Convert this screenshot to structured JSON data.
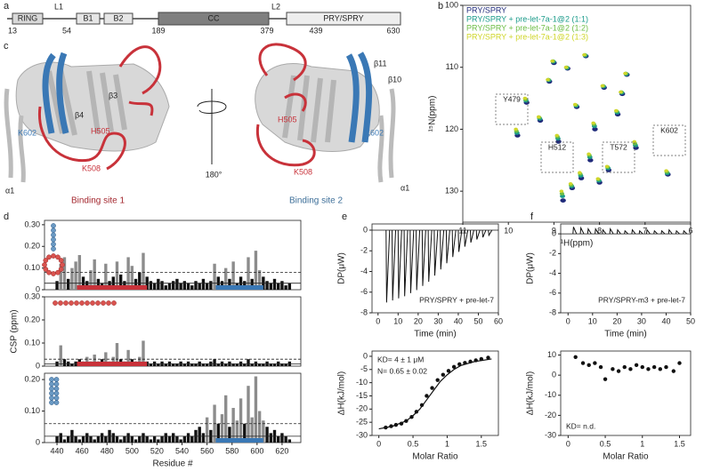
{
  "panels": [
    "a",
    "b",
    "c",
    "d",
    "e",
    "f"
  ],
  "domain_diagram": {
    "domains": [
      "RING",
      "B1",
      "B2",
      "CC",
      "PRY/SPRY"
    ],
    "linkers": [
      "L1",
      "L2"
    ],
    "positions": [
      13,
      54,
      189,
      379,
      439,
      630
    ]
  },
  "structure": {
    "left": [
      "β3",
      "β4",
      "H505",
      "K508",
      "K602",
      "α1"
    ],
    "right": [
      "β11",
      "β10",
      "H505",
      "K602",
      "K508",
      "α1"
    ],
    "rotation": "180°",
    "site1": "Binding site 1",
    "site2": "Binding site 2"
  },
  "chart_data": [
    {
      "type": "scatter",
      "xlabel": "¹H(ppm)",
      "ylabel": "¹⁵N(ppm)",
      "x_reversed": true,
      "y_reversed": true,
      "xlim": [
        6,
        11
      ],
      "ylim": [
        100,
        135
      ],
      "xticks": [
        11,
        10,
        9,
        8,
        7,
        6
      ],
      "yticks": [
        100,
        110,
        120,
        130
      ],
      "legend": "upper left",
      "annotations": [
        "Y479",
        "H512",
        "T572",
        "K602"
      ],
      "x": [
        9.6,
        9.3,
        9.1,
        8.9,
        8.7,
        8.5,
        8.3,
        8.1,
        7.9,
        7.6,
        7.4,
        7.2,
        8.8,
        8.2,
        7.8,
        9.8,
        8.6,
        8.0,
        7.5,
        8.4,
        9.0,
        6.5
      ],
      "series": [
        {
          "name": "PRY/SPRY",
          "color": "#1f2a7a",
          "values": [
            115.7,
            118.6,
            112.3,
            122,
            110.2,
            116.4,
            108.2,
            120,
            113.3,
            117.6,
            111.2,
            123,
            131.5,
            125,
            126.6,
            121,
            129.5,
            128.6,
            114.3,
            127.9,
            109.3,
            127.3
          ]
        },
        {
          "name": "PRY/SPRY + pre-let-7a-1@2 (1:1)",
          "color": "#1a9b8a",
          "values": [
            115.4,
            118.3,
            112.1,
            121.5,
            110.1,
            116.2,
            108.1,
            119.5,
            113.1,
            117.3,
            111.1,
            122.6,
            130.8,
            124.5,
            126.3,
            120.6,
            129.2,
            128.3,
            114.1,
            127.5,
            109.1,
            127.1
          ]
        },
        {
          "name": "PRY/SPRY + pre-let-7a-1@2 (1:2)",
          "color": "#6dbd45",
          "values": [
            115.2,
            118.1,
            112,
            121.2,
            110,
            116.1,
            108,
            119.2,
            113,
            117.1,
            111,
            122.3,
            130.4,
            124.2,
            126.1,
            120.3,
            129,
            128.1,
            114,
            127.2,
            109,
            126.9
          ]
        },
        {
          "name": "PRY/SPRY + pre-let-7a-1@2 (1:3)",
          "color": "#cfd62a",
          "values": [
            115,
            118,
            112,
            121,
            110,
            116,
            108,
            119,
            113,
            117,
            111,
            122,
            130,
            124,
            126,
            120,
            128.8,
            128,
            114,
            127,
            109,
            126.7
          ]
        }
      ]
    },
    {
      "type": "bar",
      "color": "#111111",
      "highlight_color": "#8c8c8c",
      "xlim": [
        430,
        635
      ],
      "ylim": [
        0,
        0.32
      ],
      "yticks": [
        0,
        {
          "value": 0.1,
          "label": "0.10"
        },
        {
          "value": 0.2,
          "label": "0.20"
        },
        {
          "value": 0.3,
          "label": "0.30"
        }
      ],
      "hlines": [
        0.03,
        0.08
      ],
      "regions": [
        {
          "start": 456,
          "end": 512,
          "color": "#c8323a"
        },
        {
          "start": 567,
          "end": 605,
          "color": "#3a78b5"
        }
      ],
      "x": [
        440,
        443,
        446,
        449,
        452,
        455,
        458,
        461,
        464,
        467,
        470,
        473,
        476,
        479,
        482,
        485,
        488,
        491,
        494,
        497,
        500,
        503,
        506,
        509,
        512,
        515,
        518,
        521,
        524,
        527,
        530,
        533,
        536,
        539,
        542,
        545,
        548,
        551,
        554,
        557,
        560,
        563,
        566,
        569,
        572,
        575,
        578,
        581,
        584,
        587,
        590,
        593,
        596,
        599,
        602,
        605,
        608,
        611,
        614,
        617,
        620,
        623,
        626
      ],
      "values": [
        0.04,
        0.12,
        0.15,
        0.05,
        0.1,
        0.13,
        0.16,
        0.06,
        0.04,
        0.09,
        0.14,
        0.05,
        0.03,
        0.12,
        0.04,
        0.06,
        0.13,
        0.07,
        0.04,
        0.15,
        0.11,
        0.05,
        0.08,
        0.17,
        0.06,
        0.04,
        0.03,
        0.05,
        0.04,
        0.02,
        0.03,
        0.04,
        0.05,
        0.03,
        0.04,
        0.03,
        0.02,
        0.04,
        0.03,
        0.05,
        0.03,
        0.04,
        0.12,
        0.06,
        0.04,
        0.1,
        0.05,
        0.13,
        0.03,
        0.06,
        0.04,
        0.15,
        0.05,
        0.18,
        0.09,
        0.06,
        0.04,
        0.03,
        0.05,
        0.03,
        0.04,
        0.02,
        0.03
      ]
    },
    {
      "type": "bar",
      "color": "#111111",
      "highlight_color": "#8c8c8c",
      "ylabel": "CSP (ppm)",
      "xlim": [
        430,
        635
      ],
      "ylim": [
        0,
        0.3
      ],
      "yticks": [
        0,
        {
          "value": 0.1,
          "label": "0.10"
        },
        {
          "value": 0.2,
          "label": "0.20"
        },
        {
          "value": 0.3,
          "label": "0.30"
        }
      ],
      "hlines": [
        0.01,
        0.03
      ],
      "regions": [
        {
          "start": 456,
          "end": 512,
          "color": "#c8323a"
        }
      ],
      "x": [
        440,
        443,
        446,
        449,
        452,
        455,
        458,
        461,
        464,
        467,
        470,
        473,
        476,
        479,
        482,
        485,
        488,
        491,
        494,
        497,
        500,
        503,
        506,
        509,
        512,
        515,
        518,
        521,
        524,
        527,
        530,
        533,
        536,
        539,
        542,
        545,
        548,
        551,
        554,
        557,
        560,
        563,
        566,
        569,
        572,
        575,
        578,
        581,
        584,
        587,
        590,
        593,
        596,
        599,
        602,
        605,
        608,
        611,
        614,
        617,
        620,
        623,
        626
      ],
      "values": [
        0.02,
        0.09,
        0.03,
        0.02,
        0.01,
        0.02,
        0.03,
        0.02,
        0.04,
        0.02,
        0.05,
        0.02,
        0.03,
        0.06,
        0.02,
        0.04,
        0.1,
        0.03,
        0.02,
        0.07,
        0.03,
        0.02,
        0.04,
        0.11,
        0.02,
        0.01,
        0.02,
        0.01,
        0.02,
        0.01,
        0.02,
        0.01,
        0.01,
        0.02,
        0.01,
        0.02,
        0.01,
        0.01,
        0.02,
        0.01,
        0.01,
        0.02,
        0.03,
        0.01,
        0.02,
        0.01,
        0.02,
        0.01,
        0.01,
        0.02,
        0.01,
        0.03,
        0.01,
        0.02,
        0.01,
        0.01,
        0.02,
        0.01,
        0.01,
        0.02,
        0.01,
        0.01,
        0.02
      ]
    },
    {
      "type": "bar",
      "color": "#111111",
      "highlight_color": "#8c8c8c",
      "xlabel": "Residue #",
      "xlim": [
        430,
        635
      ],
      "ylim": [
        0,
        0.22
      ],
      "xticks": [
        440,
        460,
        480,
        500,
        520,
        540,
        560,
        580,
        600,
        620
      ],
      "yticks": [
        0,
        {
          "value": 0.1,
          "label": "0.10"
        },
        {
          "value": 0.2,
          "label": "0.20"
        }
      ],
      "hlines": [
        0.02,
        0.06
      ],
      "regions": [
        {
          "start": 567,
          "end": 605,
          "color": "#3a78b5"
        }
      ],
      "x": [
        440,
        443,
        446,
        449,
        452,
        455,
        458,
        461,
        464,
        467,
        470,
        473,
        476,
        479,
        482,
        485,
        488,
        491,
        494,
        497,
        500,
        503,
        506,
        509,
        512,
        515,
        518,
        521,
        524,
        527,
        530,
        533,
        536,
        539,
        542,
        545,
        548,
        551,
        554,
        557,
        560,
        563,
        566,
        569,
        572,
        575,
        578,
        581,
        584,
        587,
        590,
        593,
        596,
        599,
        602,
        605,
        608,
        611,
        614,
        617,
        620,
        623,
        626
      ],
      "values": [
        0.02,
        0.03,
        0.01,
        0.02,
        0.04,
        0.02,
        0.01,
        0.02,
        0.03,
        0.02,
        0.01,
        0.02,
        0.03,
        0.02,
        0.04,
        0.03,
        0.02,
        0.01,
        0.02,
        0.03,
        0.02,
        0.01,
        0.02,
        0.03,
        0.02,
        0.01,
        0.02,
        0.01,
        0.02,
        0.03,
        0.02,
        0.03,
        0.02,
        0.01,
        0.02,
        0.03,
        0.02,
        0.04,
        0.05,
        0.03,
        0.08,
        0.04,
        0.12,
        0.06,
        0.09,
        0.15,
        0.05,
        0.11,
        0.07,
        0.14,
        0.06,
        0.18,
        0.08,
        0.21,
        0.1,
        0.07,
        0.05,
        0.03,
        0.04,
        0.02,
        0.03,
        0.02,
        0.01
      ]
    },
    {
      "type": "impulse",
      "color": "#111111",
      "xlabel": "Time (min)",
      "ylabel": "DP(μW)",
      "annotations": [
        "PRY/SPRY + pre-let-7"
      ],
      "xlim": [
        -3,
        60
      ],
      "ylim": [
        -8,
        0.6
      ],
      "xticks": [
        0,
        10,
        20,
        30,
        40,
        50,
        60
      ],
      "yticks": [
        -8,
        -6,
        -4,
        -2,
        0
      ],
      "x": [
        4,
        7,
        10,
        13,
        16,
        19,
        22,
        25,
        28,
        31,
        34,
        37,
        40,
        43,
        46,
        49,
        52,
        55
      ],
      "values": [
        -7,
        -6.8,
        -6.6,
        -6.4,
        -6.1,
        -5.8,
        -5.4,
        -5,
        -4.4,
        -3.8,
        -3.2,
        -2.6,
        -2.1,
        -1.6,
        -1.2,
        -0.9,
        -0.7,
        -0.5
      ]
    },
    {
      "type": "scatter",
      "color": "#111111",
      "xlabel": "Molar Ratio",
      "ylabel": "ΔH(kJ/mol)",
      "annotations": [
        "KD= 4 ± 1 μM",
        "N= 0.65 ± 0.02"
      ],
      "xlim": [
        -0.1,
        1.75
      ],
      "ylim": [
        -30,
        2
      ],
      "xticks": [
        0,
        0.5,
        1,
        1.5
      ],
      "yticks": [
        -30,
        -25,
        -20,
        -15,
        -10,
        -5,
        0
      ],
      "points": {
        "x": [
          0.1,
          0.18,
          0.25,
          0.33,
          0.4,
          0.48,
          0.55,
          0.63,
          0.7,
          0.78,
          0.86,
          0.94,
          1.02,
          1.1,
          1.18,
          1.26,
          1.34,
          1.42,
          1.5,
          1.6
        ],
        "values": [
          -27,
          -26.5,
          -26,
          -25.5,
          -24.5,
          -23,
          -21,
          -18.5,
          -15,
          -12,
          -9,
          -7,
          -5.5,
          -4,
          -3,
          -2.5,
          -2,
          -1.5,
          -1,
          -0.5
        ]
      },
      "fit": {
        "x": [
          0,
          0.2,
          0.4,
          0.5,
          0.6,
          0.7,
          0.8,
          0.9,
          1.0,
          1.1,
          1.2,
          1.4,
          1.65
        ],
        "values": [
          -27.5,
          -26.5,
          -24.5,
          -22.5,
          -20,
          -16.5,
          -13,
          -9.5,
          -7,
          -5,
          -3.5,
          -2,
          -1
        ]
      }
    },
    {
      "type": "impulse",
      "color": "#111111",
      "xlabel": "Time (min)",
      "ylabel": "DP(μW)",
      "annotations": [
        "PRY/SPRY-m3 + pre-let-7"
      ],
      "xlim": [
        -3,
        50
      ],
      "ylim": [
        -8,
        1
      ],
      "xticks": [
        0,
        10,
        20,
        30,
        40,
        50
      ],
      "yticks": [
        -8,
        -6,
        -4,
        -2,
        0
      ],
      "x": [
        2,
        5,
        8,
        11,
        14,
        17,
        20,
        23,
        26,
        29,
        32,
        35,
        38,
        41,
        44,
        47
      ],
      "values": [
        0.7,
        0.6,
        0.5,
        0.5,
        0.4,
        0.5,
        0.4,
        0.3,
        0.4,
        0.3,
        0.4,
        0.3,
        0.3,
        0.4,
        0.3,
        0.3
      ]
    },
    {
      "type": "scatter",
      "color": "#111111",
      "xlabel": "Molar Ratio",
      "ylabel": "ΔH(kJ/mol)",
      "annotations": [
        "KD= n.d."
      ],
      "xlim": [
        -0.1,
        1.65
      ],
      "ylim": [
        -30,
        12
      ],
      "xticks": [
        0,
        0.5,
        1,
        1.5
      ],
      "yticks": [
        -30,
        -20,
        -10,
        0,
        10
      ],
      "points": {
        "x": [
          0.1,
          0.2,
          0.28,
          0.36,
          0.44,
          0.5,
          0.6,
          0.68,
          0.76,
          0.84,
          0.92,
          1.0,
          1.08,
          1.16,
          1.24,
          1.32,
          1.42,
          1.5
        ],
        "values": [
          9,
          6,
          5,
          6,
          4,
          -2,
          3,
          2,
          4,
          3,
          5,
          4,
          3,
          4,
          3,
          4,
          2,
          6
        ]
      }
    }
  ]
}
